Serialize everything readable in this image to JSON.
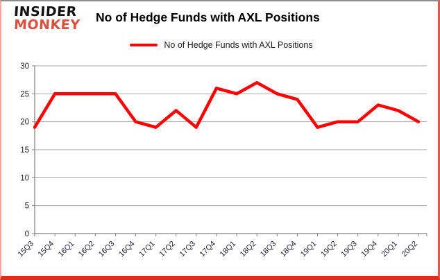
{
  "logo": {
    "line1": "INSIDER",
    "line2": "MONKEY"
  },
  "header": {
    "title": "No of Hedge Funds with AXL Positions"
  },
  "legend": {
    "label": "No of Hedge Funds with AXL Positions",
    "line_color": "#ff0000"
  },
  "colors": {
    "series": "#ff0000",
    "gridline": "#a6a6a6",
    "axis": "#808080",
    "frame_bottom": "#e22b1e",
    "logo_accent": "#d9503e"
  },
  "chart_data": {
    "type": "line",
    "title": "No of Hedge Funds with AXL Positions",
    "categories": [
      "15Q3",
      "15Q4",
      "16Q1",
      "16Q2",
      "16Q3",
      "16Q4",
      "17Q1",
      "17Q2",
      "17Q3",
      "17Q4",
      "18Q1",
      "18Q2",
      "18Q3",
      "18Q4",
      "19Q1",
      "19Q2",
      "19Q3",
      "19Q4",
      "20Q1",
      "20Q2"
    ],
    "series": [
      {
        "name": "No of Hedge Funds with AXL Positions",
        "color": "#ff0000",
        "values": [
          19,
          25,
          25,
          25,
          25,
          20,
          19,
          22,
          19,
          26,
          25,
          27,
          25,
          24,
          19,
          20,
          20,
          23,
          22,
          20
        ]
      }
    ],
    "xlabel": "",
    "ylabel": "",
    "ylim": [
      0,
      30
    ],
    "ytick_interval": 5,
    "yticks": [
      0,
      5,
      10,
      15,
      20,
      25,
      30
    ],
    "grid": "horizontal",
    "legend_position": "top"
  }
}
